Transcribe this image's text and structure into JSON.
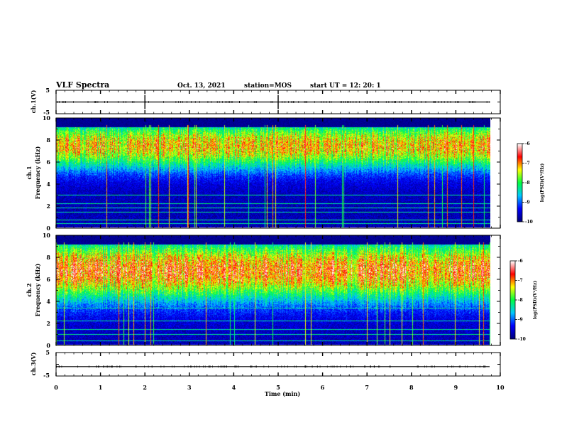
{
  "header": {
    "title": "VLF Spectra",
    "date": "Oct. 13, 2021",
    "station": "station=MOS",
    "start": "start  UT =   12: 20: 1"
  },
  "chart_data": [
    {
      "type": "line",
      "name": "ch1-voltage",
      "ylabel": "ch.1(V)",
      "ylim": [
        -5,
        5
      ],
      "yticks": [
        "5",
        "-5"
      ],
      "baseline_value": 0,
      "spike_times_min": [
        2.0,
        5.0
      ]
    },
    {
      "type": "heatmap",
      "name": "ch1-spectrogram",
      "ylabel": "ch.1\nFrequency (kHz)",
      "ylim": [
        0,
        10
      ],
      "yticks": [
        "0",
        "2",
        "4",
        "6",
        "8",
        "10"
      ],
      "xlim": [
        0,
        10
      ],
      "band_center_khz": 7.5,
      "band_halfwidth_khz": 2.2,
      "band_peak_log_psd": -6.6,
      "noise_floor_log_psd": -10,
      "horizontal_lines_khz": [
        0.4,
        0.7,
        1.4,
        1.8,
        2.2,
        3.0
      ],
      "colorbar": {
        "label": "log(PSD)(V²/Hz)",
        "ticks": [
          "-6",
          "-7",
          "-8",
          "-9",
          "-10"
        ],
        "range": [
          -10,
          -6
        ]
      }
    },
    {
      "type": "heatmap",
      "name": "ch2-spectrogram",
      "ylabel": "ch.2\nFrequency (kHz)",
      "ylim": [
        0,
        10
      ],
      "yticks": [
        "0",
        "2",
        "4",
        "6",
        "8",
        "10"
      ],
      "xlim": [
        0,
        10
      ],
      "band_center_khz": 6.8,
      "band_halfwidth_khz": 2.8,
      "band_peak_log_psd": -6.2,
      "noise_floor_log_psd": -10,
      "horizontal_lines_khz": [
        0.4,
        1.0,
        1.4,
        2.2,
        3.4
      ],
      "colorbar": {
        "label": "log(PSD)(V²/Hz)",
        "ticks": [
          "-6",
          "-7",
          "-8",
          "-9",
          "-10"
        ],
        "range": [
          -10,
          -6
        ]
      }
    },
    {
      "type": "line",
      "name": "ch3-voltage",
      "ylabel": "ch.3(V)",
      "ylim": [
        -5,
        5
      ],
      "yticks": [
        "5",
        "-5"
      ],
      "baseline_value": -1,
      "spike_times_min": []
    }
  ],
  "time_axis": {
    "xlabel": "Time  (min)",
    "xlim": [
      0,
      10
    ],
    "ticks": [
      "0",
      "1",
      "2",
      "3",
      "4",
      "5",
      "6",
      "7",
      "8",
      "9",
      "10"
    ]
  },
  "colors": {
    "colormap": [
      "#00007a",
      "#0000ff",
      "#00c8ff",
      "#00ff40",
      "#ffff00",
      "#ff0000",
      "#ffffff"
    ]
  }
}
